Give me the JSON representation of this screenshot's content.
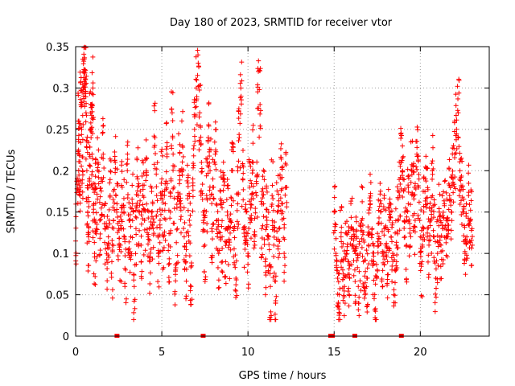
{
  "chart_data": {
    "type": "scatter",
    "title": "Day 180 of 2023, SRMTID for receiver vtor",
    "xlabel": "GPS time / hours",
    "ylabel": "SRMTID / TECUs",
    "xlim": [
      0,
      24
    ],
    "ylim": [
      0,
      0.35
    ],
    "xticks": [
      0,
      5,
      10,
      15,
      20
    ],
    "yticks": [
      0,
      0.05,
      0.1,
      0.15,
      0.2,
      0.25,
      0.3,
      0.35
    ],
    "xtick_labels": [
      "0",
      "5",
      "10",
      "15",
      "20"
    ],
    "ytick_labels": [
      "0",
      "0.05",
      "0.1",
      "0.15",
      "0.2",
      "0.25",
      "0.3",
      "0.35"
    ],
    "grid": true,
    "marker": "+",
    "color": "#ff0000",
    "series": [
      {
        "name": "SRMTID",
        "x": [
          0.0,
          0.1,
          0.15,
          0.2,
          0.25,
          0.3,
          0.35,
          0.4,
          0.45,
          0.5,
          0.5,
          0.55,
          0.6,
          0.65,
          0.7,
          0.75,
          0.8,
          0.85,
          0.9,
          0.95,
          1.0,
          1.05,
          1.1,
          1.15,
          1.2,
          1.3,
          1.4,
          1.5,
          1.6,
          1.7,
          1.8,
          1.9,
          2.0,
          2.1,
          2.2,
          2.3,
          2.4,
          2.5,
          2.6,
          2.7,
          2.8,
          2.9,
          3.0,
          3.1,
          3.2,
          3.3,
          3.4,
          3.5,
          3.6,
          3.7,
          3.8,
          3.9,
          4.0,
          4.1,
          4.2,
          4.3,
          4.4,
          4.5,
          4.6,
          4.7,
          4.8,
          4.9,
          5.0,
          5.1,
          5.2,
          5.3,
          5.4,
          5.5,
          5.6,
          5.7,
          5.8,
          5.9,
          6.0,
          6.1,
          6.2,
          6.3,
          6.4,
          6.5,
          6.6,
          6.7,
          6.8,
          6.9,
          7.0,
          7.1,
          7.2,
          7.3,
          7.4,
          7.5,
          7.6,
          7.7,
          7.8,
          7.9,
          8.0,
          8.1,
          8.2,
          8.3,
          8.4,
          8.5,
          8.6,
          8.7,
          8.8,
          8.9,
          9.0,
          9.1,
          9.2,
          9.3,
          9.4,
          9.5,
          9.6,
          9.7,
          9.8,
          9.9,
          10.0,
          10.1,
          10.2,
          10.3,
          10.4,
          10.5,
          10.6,
          10.7,
          10.8,
          10.9,
          11.0,
          11.1,
          11.2,
          11.3,
          11.4,
          11.5,
          11.6,
          11.7,
          11.8,
          11.9,
          12.0,
          12.1,
          12.2,
          15.0,
          15.1,
          15.2,
          15.3,
          15.4,
          15.5,
          15.6,
          15.7,
          15.8,
          15.9,
          16.0,
          16.1,
          16.2,
          16.3,
          16.4,
          16.5,
          16.6,
          16.7,
          16.8,
          16.9,
          17.0,
          17.1,
          17.2,
          17.3,
          17.4,
          17.5,
          17.6,
          17.7,
          17.8,
          17.9,
          18.0,
          18.1,
          18.2,
          18.3,
          18.4,
          18.5,
          18.6,
          18.7,
          18.8,
          18.9,
          19.0,
          19.1,
          19.2,
          19.3,
          19.4,
          19.5,
          19.6,
          19.7,
          19.8,
          19.9,
          20.0,
          20.1,
          20.2,
          20.3,
          20.4,
          20.5,
          20.6,
          20.7,
          20.8,
          20.9,
          21.0,
          21.1,
          21.2,
          21.3,
          21.4,
          21.5,
          21.6,
          21.7,
          21.8,
          21.9,
          22.0,
          22.1,
          22.2,
          22.3,
          22.4,
          22.5,
          22.6,
          22.7,
          22.8,
          22.9,
          23.0
        ],
        "y": [
          0.115,
          0.19,
          0.26,
          0.22,
          0.17,
          0.28,
          0.25,
          0.2,
          0.3,
          0.335,
          0.32,
          0.31,
          0.27,
          0.2,
          0.15,
          0.12,
          0.19,
          0.25,
          0.28,
          0.22,
          0.3,
          0.16,
          0.1,
          0.18,
          0.13,
          0.21,
          0.14,
          0.19,
          0.22,
          0.13,
          0.1,
          0.12,
          0.17,
          0.09,
          0.14,
          0.21,
          0.16,
          0.13,
          0.11,
          0.18,
          0.15,
          0.08,
          0.2,
          0.14,
          0.12,
          0.16,
          0.06,
          0.13,
          0.19,
          0.15,
          0.11,
          0.17,
          0.14,
          0.2,
          0.12,
          0.09,
          0.15,
          0.13,
          0.24,
          0.17,
          0.1,
          0.14,
          0.19,
          0.12,
          0.16,
          0.22,
          0.11,
          0.15,
          0.27,
          0.18,
          0.08,
          0.13,
          0.2,
          0.16,
          0.23,
          0.12,
          0.09,
          0.17,
          0.14,
          0.06,
          0.19,
          0.25,
          0.3,
          0.34,
          0.27,
          0.21,
          0.15,
          0.11,
          0.17,
          0.24,
          0.2,
          0.13,
          0.18,
          0.22,
          0.14,
          0.1,
          0.16,
          0.12,
          0.19,
          0.09,
          0.15,
          0.11,
          0.14,
          0.2,
          0.13,
          0.07,
          0.16,
          0.24,
          0.29,
          0.19,
          0.12,
          0.15,
          0.1,
          0.18,
          0.14,
          0.21,
          0.11,
          0.17,
          0.32,
          0.28,
          0.13,
          0.16,
          0.09,
          0.14,
          0.12,
          0.06,
          0.17,
          0.11,
          0.04,
          0.15,
          0.13,
          0.19,
          0.16,
          0.1,
          0.18,
          0.15,
          0.1,
          0.07,
          0.05,
          0.12,
          0.08,
          0.06,
          0.1,
          0.09,
          0.07,
          0.13,
          0.11,
          0.08,
          0.12,
          0.06,
          0.1,
          0.14,
          0.09,
          0.05,
          0.07,
          0.11,
          0.16,
          0.13,
          0.09,
          0.03,
          0.08,
          0.12,
          0.15,
          0.1,
          0.13,
          0.11,
          0.09,
          0.14,
          0.12,
          0.1,
          0.08,
          0.11,
          0.14,
          0.17,
          0.21,
          0.19,
          0.15,
          0.11,
          0.16,
          0.13,
          0.2,
          0.17,
          0.14,
          0.22,
          0.18,
          0.12,
          0.09,
          0.15,
          0.19,
          0.16,
          0.11,
          0.14,
          0.2,
          0.12,
          0.07,
          0.1,
          0.15,
          0.11,
          0.13,
          0.16,
          0.14,
          0.12,
          0.17,
          0.15,
          0.19,
          0.22,
          0.25,
          0.27,
          0.2,
          0.18,
          0.15,
          0.1,
          0.12,
          0.17,
          0.14,
          0.13
        ],
        "zero_markers_x": [
          2.4,
          7.4,
          14.8,
          14.9,
          16.2,
          18.9
        ]
      }
    ],
    "data_gap": [
      12.3,
      14.9
    ]
  }
}
